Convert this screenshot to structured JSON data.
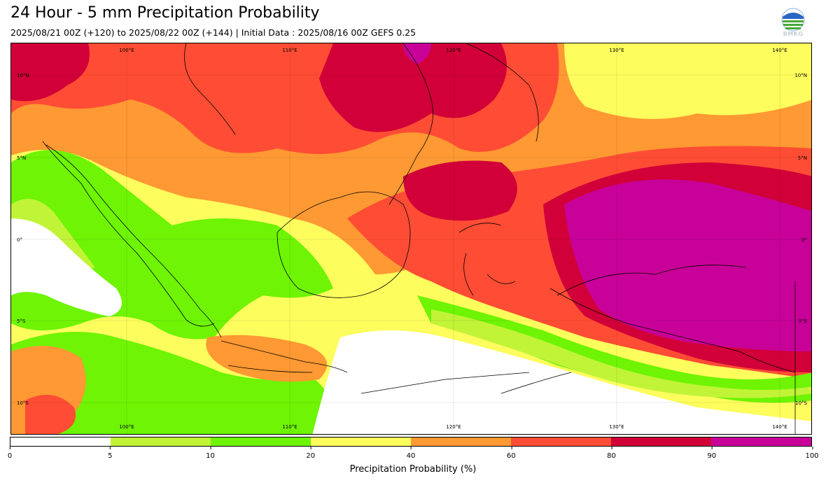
{
  "title": "24 Hour - 5 mm Precipitation Probability",
  "subtitle": "2025/08/21 00Z (+120) to 2025/08/22 00Z (+144) | Initial Data : 2025/08/16 00Z GEFS 0.25",
  "logo": {
    "icon": "bmkg-logo",
    "text": "BMKG"
  },
  "map": {
    "lon_labels": [
      "100°E",
      "110°E",
      "120°E",
      "130°E",
      "140°E"
    ],
    "lat_labels_left": [
      "10°N",
      "5°N",
      "0°",
      "5°S",
      "10°S"
    ],
    "lat_labels_right": [
      "10°N",
      "5°N",
      "0°",
      "5°S",
      "10°S"
    ]
  },
  "colorbar": {
    "label": "Precipitation Probability (%)",
    "ticks": [
      "0",
      "5",
      "10",
      "20",
      "40",
      "60",
      "80",
      "90",
      "100"
    ],
    "colors": [
      "#ffffff",
      "#c1f437",
      "#6ef404",
      "#fdfd5d",
      "#fe9933",
      "#fe4d34",
      "#d10038",
      "#c80198"
    ]
  },
  "chart_data": {
    "type": "heatmap",
    "title": "24 Hour - 5 mm Precipitation Probability",
    "colorbar_label": "Precipitation Probability (%)",
    "levels": [
      0,
      5,
      10,
      20,
      40,
      60,
      80,
      90,
      100
    ],
    "lon_range": [
      93,
      142
    ],
    "lat_range": [
      -12,
      12
    ]
  }
}
